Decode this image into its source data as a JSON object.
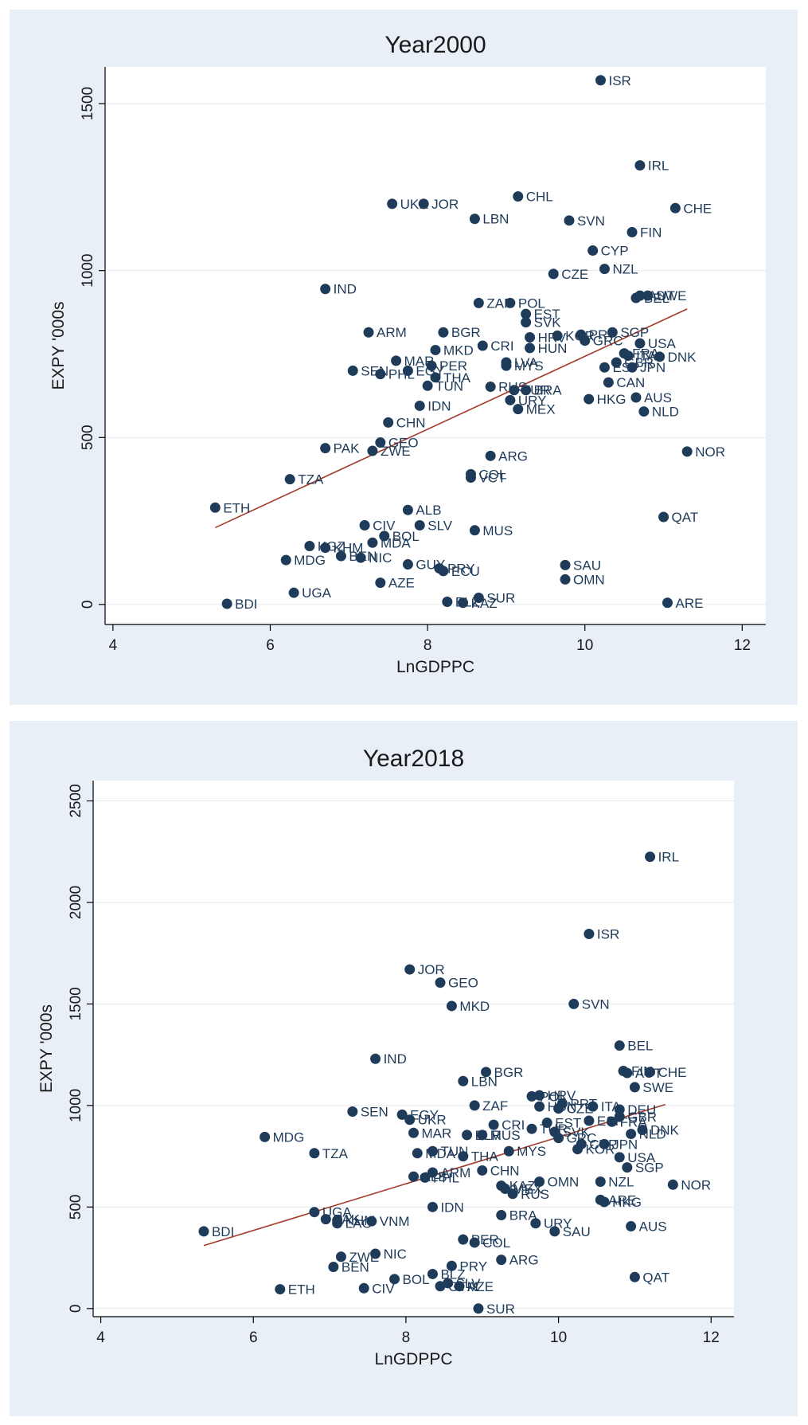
{
  "colors": {
    "panel_bg": "#e9eff6",
    "marker": "#1f3b5a",
    "fit_line": "#a33a2b"
  },
  "chart_data": [
    {
      "type": "scatter",
      "title": "Year2000",
      "xlabel": "LnGDPPC",
      "ylabel": "EXPY '000s",
      "xlim": [
        3.9,
        12.3
      ],
      "ylim": [
        -60,
        1610
      ],
      "xticks": [
        4,
        6,
        8,
        10,
        12
      ],
      "yticks": [
        0,
        500,
        1000,
        1500
      ],
      "grid": true,
      "fit_line": {
        "x": [
          5.3,
          11.3
        ],
        "y": [
          230,
          885
        ]
      },
      "points": [
        {
          "label": "ISR",
          "x": 10.2,
          "y": 1570
        },
        {
          "label": "IRL",
          "x": 10.7,
          "y": 1315
        },
        {
          "label": "CHL",
          "x": 9.15,
          "y": 1222
        },
        {
          "label": "UKR",
          "x": 7.55,
          "y": 1200
        },
        {
          "label": "JOR",
          "x": 7.95,
          "y": 1200
        },
        {
          "label": "CHE",
          "x": 11.15,
          "y": 1187
        },
        {
          "label": "LBN",
          "x": 8.6,
          "y": 1155
        },
        {
          "label": "SVN",
          "x": 9.8,
          "y": 1150
        },
        {
          "label": "FIN",
          "x": 10.6,
          "y": 1115
        },
        {
          "label": "CYP",
          "x": 10.1,
          "y": 1060
        },
        {
          "label": "NZL",
          "x": 10.25,
          "y": 1005
        },
        {
          "label": "CZE",
          "x": 9.6,
          "y": 990
        },
        {
          "label": "IND",
          "x": 6.7,
          "y": 945
        },
        {
          "label": "SWE",
          "x": 10.8,
          "y": 925
        },
        {
          "label": "AUT",
          "x": 10.7,
          "y": 925
        },
        {
          "label": "BEL",
          "x": 10.65,
          "y": 918
        },
        {
          "label": "ZAF",
          "x": 8.65,
          "y": 903
        },
        {
          "label": "POL",
          "x": 9.05,
          "y": 903
        },
        {
          "label": "EST",
          "x": 9.25,
          "y": 870
        },
        {
          "label": "SVK",
          "x": 9.25,
          "y": 845
        },
        {
          "label": "ARM",
          "x": 7.25,
          "y": 815
        },
        {
          "label": "BGR",
          "x": 8.2,
          "y": 815
        },
        {
          "label": "SGP",
          "x": 10.35,
          "y": 815
        },
        {
          "label": "PRT",
          "x": 9.95,
          "y": 808
        },
        {
          "label": "HRV",
          "x": 9.3,
          "y": 800
        },
        {
          "label": "KOR",
          "x": 9.65,
          "y": 805
        },
        {
          "label": "GRC",
          "x": 10.0,
          "y": 790
        },
        {
          "label": "USA",
          "x": 10.7,
          "y": 782
        },
        {
          "label": "CRI",
          "x": 8.7,
          "y": 775
        },
        {
          "label": "HUN",
          "x": 9.3,
          "y": 768
        },
        {
          "label": "MKD",
          "x": 8.1,
          "y": 762
        },
        {
          "label": "DNK",
          "x": 10.95,
          "y": 742
        },
        {
          "label": "FRA",
          "x": 10.5,
          "y": 752
        },
        {
          "label": "ITA",
          "x": 10.55,
          "y": 745
        },
        {
          "label": "MAR",
          "x": 7.6,
          "y": 730
        },
        {
          "label": "LVA",
          "x": 9.0,
          "y": 725
        },
        {
          "label": "GBR",
          "x": 10.4,
          "y": 725
        },
        {
          "label": "MYS",
          "x": 9.0,
          "y": 715
        },
        {
          "label": "PER",
          "x": 8.05,
          "y": 715
        },
        {
          "label": "ESP",
          "x": 10.25,
          "y": 710
        },
        {
          "label": "JPN",
          "x": 10.6,
          "y": 710
        },
        {
          "label": "SEN",
          "x": 7.05,
          "y": 700
        },
        {
          "label": "EGY",
          "x": 7.75,
          "y": 700
        },
        {
          "label": "PHL",
          "x": 7.4,
          "y": 690
        },
        {
          "label": "THA",
          "x": 8.1,
          "y": 680
        },
        {
          "label": "CAN",
          "x": 10.3,
          "y": 665
        },
        {
          "label": "TUN",
          "x": 8.0,
          "y": 655
        },
        {
          "label": "RUS",
          "x": 8.8,
          "y": 652
        },
        {
          "label": "TUR",
          "x": 9.1,
          "y": 642
        },
        {
          "label": "BRA",
          "x": 9.25,
          "y": 642
        },
        {
          "label": "AUS",
          "x": 10.65,
          "y": 620
        },
        {
          "label": "HKG",
          "x": 10.05,
          "y": 615
        },
        {
          "label": "URY",
          "x": 9.05,
          "y": 612
        },
        {
          "label": "IDN",
          "x": 7.9,
          "y": 595
        },
        {
          "label": "MEX",
          "x": 9.15,
          "y": 585
        },
        {
          "label": "NLD",
          "x": 10.75,
          "y": 578
        },
        {
          "label": "CHN",
          "x": 7.5,
          "y": 545
        },
        {
          "label": "GEO",
          "x": 7.4,
          "y": 485
        },
        {
          "label": "PAK",
          "x": 6.7,
          "y": 468
        },
        {
          "label": "ZWE",
          "x": 7.3,
          "y": 460
        },
        {
          "label": "NOR",
          "x": 11.3,
          "y": 458
        },
        {
          "label": "ARG",
          "x": 8.8,
          "y": 445
        },
        {
          "label": "COL",
          "x": 8.55,
          "y": 390
        },
        {
          "label": "VCT",
          "x": 8.55,
          "y": 380
        },
        {
          "label": "TZA",
          "x": 6.25,
          "y": 375
        },
        {
          "label": "ETH",
          "x": 5.3,
          "y": 290
        },
        {
          "label": "ALB",
          "x": 7.75,
          "y": 283
        },
        {
          "label": "QAT",
          "x": 11.0,
          "y": 262
        },
        {
          "label": "CIV",
          "x": 7.2,
          "y": 237
        },
        {
          "label": "SLV",
          "x": 7.9,
          "y": 237
        },
        {
          "label": "MUS",
          "x": 8.6,
          "y": 222
        },
        {
          "label": "BOL",
          "x": 7.45,
          "y": 205
        },
        {
          "label": "MDA",
          "x": 7.3,
          "y": 185
        },
        {
          "label": "KGZ",
          "x": 6.5,
          "y": 175
        },
        {
          "label": "KHM",
          "x": 6.7,
          "y": 170
        },
        {
          "label": "BEN",
          "x": 6.9,
          "y": 145
        },
        {
          "label": "NIC",
          "x": 7.15,
          "y": 140
        },
        {
          "label": "MDG",
          "x": 6.2,
          "y": 133
        },
        {
          "label": "GUY",
          "x": 7.75,
          "y": 120
        },
        {
          "label": "PRY",
          "x": 8.15,
          "y": 108
        },
        {
          "label": "ECU",
          "x": 8.2,
          "y": 100
        },
        {
          "label": "SAU",
          "x": 9.75,
          "y": 118
        },
        {
          "label": "OMN",
          "x": 9.75,
          "y": 75
        },
        {
          "label": "AZE",
          "x": 7.4,
          "y": 65
        },
        {
          "label": "UGA",
          "x": 6.3,
          "y": 35
        },
        {
          "label": "SUR",
          "x": 8.65,
          "y": 20
        },
        {
          "label": "BLZ",
          "x": 8.25,
          "y": 8
        },
        {
          "label": "KAZ",
          "x": 8.45,
          "y": 5
        },
        {
          "label": "BDI",
          "x": 5.45,
          "y": 2
        },
        {
          "label": "ARE",
          "x": 11.05,
          "y": 5
        }
      ]
    },
    {
      "type": "scatter",
      "title": "Year2018",
      "xlabel": "LnGDPPC",
      "ylabel": "EXPY '000s",
      "xlim": [
        3.9,
        12.3
      ],
      "ylim": [
        -40,
        2600
      ],
      "xticks": [
        4,
        6,
        8,
        10,
        12
      ],
      "yticks": [
        0,
        500,
        1000,
        1500,
        2000,
        2500
      ],
      "grid": true,
      "fit_line": {
        "x": [
          5.35,
          11.4
        ],
        "y": [
          310,
          1005
        ]
      },
      "points": [
        {
          "label": "IRL",
          "x": 11.2,
          "y": 2225
        },
        {
          "label": "ISR",
          "x": 10.4,
          "y": 1845
        },
        {
          "label": "JOR",
          "x": 8.05,
          "y": 1670
        },
        {
          "label": "GEO",
          "x": 8.45,
          "y": 1605
        },
        {
          "label": "MKD",
          "x": 8.6,
          "y": 1490
        },
        {
          "label": "SVN",
          "x": 10.2,
          "y": 1500
        },
        {
          "label": "BEL",
          "x": 10.8,
          "y": 1295
        },
        {
          "label": "IND",
          "x": 7.6,
          "y": 1230
        },
        {
          "label": "FIN",
          "x": 10.85,
          "y": 1170
        },
        {
          "label": "AUT",
          "x": 10.9,
          "y": 1160
        },
        {
          "label": "CHE",
          "x": 11.2,
          "y": 1165
        },
        {
          "label": "BGR",
          "x": 9.05,
          "y": 1165
        },
        {
          "label": "LBN",
          "x": 8.75,
          "y": 1120
        },
        {
          "label": "SWE",
          "x": 11.0,
          "y": 1090
        },
        {
          "label": "HRV",
          "x": 9.75,
          "y": 1050
        },
        {
          "label": "POL",
          "x": 9.65,
          "y": 1045
        },
        {
          "label": "PRT",
          "x": 10.05,
          "y": 1010
        },
        {
          "label": "ITA",
          "x": 10.45,
          "y": 995
        },
        {
          "label": "DEU",
          "x": 10.8,
          "y": 980
        },
        {
          "label": "ZAF",
          "x": 8.9,
          "y": 1000
        },
        {
          "label": "HUN",
          "x": 9.75,
          "y": 995
        },
        {
          "label": "CZE",
          "x": 10.0,
          "y": 985
        },
        {
          "label": "SEN",
          "x": 7.3,
          "y": 970
        },
        {
          "label": "EGY",
          "x": 7.95,
          "y": 955
        },
        {
          "label": "UKR",
          "x": 8.05,
          "y": 930
        },
        {
          "label": "GBR",
          "x": 10.8,
          "y": 945
        },
        {
          "label": "FRA",
          "x": 10.7,
          "y": 920
        },
        {
          "label": "ESP",
          "x": 10.4,
          "y": 925
        },
        {
          "label": "EST",
          "x": 9.85,
          "y": 915
        },
        {
          "label": "CRI",
          "x": 9.15,
          "y": 905
        },
        {
          "label": "TUR",
          "x": 9.65,
          "y": 885
        },
        {
          "label": "DNK",
          "x": 11.1,
          "y": 880
        },
        {
          "label": "NLD",
          "x": 10.95,
          "y": 860
        },
        {
          "label": "SVK",
          "x": 9.95,
          "y": 870
        },
        {
          "label": "MAR",
          "x": 8.1,
          "y": 865
        },
        {
          "label": "BLR",
          "x": 8.8,
          "y": 855
        },
        {
          "label": "MUS",
          "x": 9.0,
          "y": 855
        },
        {
          "label": "MDG",
          "x": 6.15,
          "y": 845
        },
        {
          "label": "GRC",
          "x": 10.0,
          "y": 840
        },
        {
          "label": "CYP",
          "x": 10.3,
          "y": 810
        },
        {
          "label": "JPN",
          "x": 10.6,
          "y": 810
        },
        {
          "label": "KOR",
          "x": 10.25,
          "y": 785
        },
        {
          "label": "TUN",
          "x": 8.35,
          "y": 775
        },
        {
          "label": "MYS",
          "x": 9.35,
          "y": 775
        },
        {
          "label": "TZA",
          "x": 6.8,
          "y": 765
        },
        {
          "label": "MDA",
          "x": 8.15,
          "y": 765
        },
        {
          "label": "THA",
          "x": 8.75,
          "y": 750
        },
        {
          "label": "USA",
          "x": 10.8,
          "y": 745
        },
        {
          "label": "SGP",
          "x": 10.9,
          "y": 695
        },
        {
          "label": "CHN",
          "x": 9.0,
          "y": 680
        },
        {
          "label": "ARM",
          "x": 8.35,
          "y": 670
        },
        {
          "label": "ALB",
          "x": 8.1,
          "y": 650
        },
        {
          "label": "PHL",
          "x": 8.25,
          "y": 645
        },
        {
          "label": "OMN",
          "x": 9.75,
          "y": 625
        },
        {
          "label": "NZL",
          "x": 10.55,
          "y": 625
        },
        {
          "label": "NOR",
          "x": 11.5,
          "y": 610
        },
        {
          "label": "KAZ",
          "x": 9.25,
          "y": 605
        },
        {
          "label": "MEX",
          "x": 9.3,
          "y": 590
        },
        {
          "label": "RUS",
          "x": 9.4,
          "y": 565
        },
        {
          "label": "ARE",
          "x": 10.55,
          "y": 535
        },
        {
          "label": "HKG",
          "x": 10.6,
          "y": 525
        },
        {
          "label": "IDN",
          "x": 8.35,
          "y": 500
        },
        {
          "label": "UGA",
          "x": 6.8,
          "y": 475
        },
        {
          "label": "BRA",
          "x": 9.25,
          "y": 460
        },
        {
          "label": "PAK",
          "x": 6.95,
          "y": 440
        },
        {
          "label": "KHM",
          "x": 7.1,
          "y": 435
        },
        {
          "label": "VNM",
          "x": 7.55,
          "y": 430
        },
        {
          "label": "LAO",
          "x": 7.1,
          "y": 420
        },
        {
          "label": "URY",
          "x": 9.7,
          "y": 420
        },
        {
          "label": "AUS",
          "x": 10.95,
          "y": 405
        },
        {
          "label": "BDI",
          "x": 5.35,
          "y": 380
        },
        {
          "label": "SAU",
          "x": 9.95,
          "y": 380
        },
        {
          "label": "PER",
          "x": 8.75,
          "y": 340
        },
        {
          "label": "COL",
          "x": 8.9,
          "y": 325
        },
        {
          "label": "NIC",
          "x": 7.6,
          "y": 270
        },
        {
          "label": "ZWE",
          "x": 7.15,
          "y": 255
        },
        {
          "label": "ARG",
          "x": 9.25,
          "y": 240
        },
        {
          "label": "BEN",
          "x": 7.05,
          "y": 205
        },
        {
          "label": "PRY",
          "x": 8.6,
          "y": 210
        },
        {
          "label": "BLZ",
          "x": 8.35,
          "y": 170
        },
        {
          "label": "QAT",
          "x": 11.0,
          "y": 155
        },
        {
          "label": "BOL",
          "x": 7.85,
          "y": 145
        },
        {
          "label": "SLV",
          "x": 8.55,
          "y": 125
        },
        {
          "label": "AZE",
          "x": 8.7,
          "y": 110
        },
        {
          "label": "GTM",
          "x": 8.45,
          "y": 110
        },
        {
          "label": "ETH",
          "x": 6.35,
          "y": 95
        },
        {
          "label": "CIV",
          "x": 7.45,
          "y": 100
        },
        {
          "label": "SUR",
          "x": 8.95,
          "y": 0
        }
      ]
    }
  ]
}
